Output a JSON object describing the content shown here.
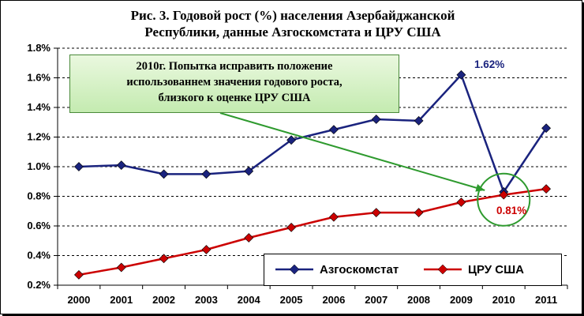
{
  "title_lines": [
    "Рис. 3. Годовой рост (%) населения Азербайджанской",
    "Республики, данные Азгоскомстата и ЦРУ США"
  ],
  "callout_lines": [
    "2010г. Попытка исправить положение",
    "использованнем значения годового роста,",
    "близкого к оценке ЦРУ США"
  ],
  "chart_data": {
    "type": "line",
    "title": "Рис. 3. Годовой рост (%) населения Азербайджанской Республики, данные Азгоскомстата и ЦРУ США",
    "x": [
      "2000",
      "2001",
      "2002",
      "2003",
      "2004",
      "2005",
      "2006",
      "2007",
      "2008",
      "2009",
      "2010",
      "2011"
    ],
    "ylim": [
      0.2,
      1.8
    ],
    "yticks": [
      "0.2%",
      "0.4%",
      "0.6%",
      "0.8%",
      "1.0%",
      "1.2%",
      "1.4%",
      "1.6%",
      "1.8%"
    ],
    "ytick_values": [
      0.2,
      0.4,
      0.6,
      0.8,
      1.0,
      1.2,
      1.4,
      1.6,
      1.8
    ],
    "grid": "horizontal dashed",
    "legend_position": "bottom-right",
    "series": [
      {
        "name": "Азгоскомстат",
        "color": "#1a237e",
        "marker": "diamond",
        "values": [
          1.0,
          1.01,
          0.95,
          0.95,
          0.97,
          1.18,
          1.25,
          1.32,
          1.31,
          1.62,
          0.83,
          1.26
        ]
      },
      {
        "name": "ЦРУ США",
        "color": "#cc0000",
        "marker": "diamond",
        "values": [
          0.27,
          0.32,
          0.38,
          0.44,
          0.52,
          0.59,
          0.66,
          0.69,
          0.69,
          0.76,
          0.81,
          0.85
        ]
      }
    ],
    "annotations": [
      {
        "text": "1.62%",
        "series": "Азгоскомстат",
        "x": "2009",
        "color": "#1a237e"
      },
      {
        "text": "0.81%",
        "series": "ЦРУ США",
        "x": "2010",
        "color": "#cc0000"
      }
    ],
    "highlight": {
      "x": "2010",
      "shape": "circle",
      "color": "#2e9a2e"
    }
  },
  "colors": {
    "axis": "#000000",
    "callout_border": "#4a8a3a",
    "arrow": "#2e9a2e"
  }
}
